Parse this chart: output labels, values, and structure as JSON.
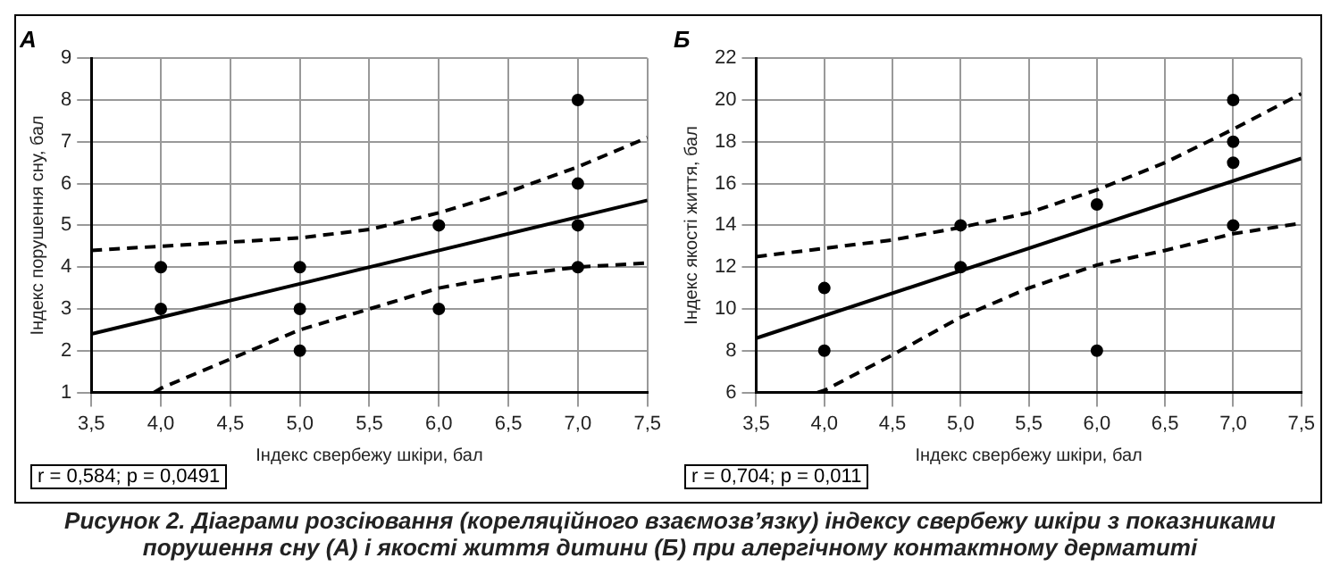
{
  "chart_data": [
    {
      "type": "scatter",
      "title": "А",
      "xlabel": "Індекс свербежу шкіри, бал",
      "ylabel": "Індекс порушення сну, бал",
      "annotations": [
        "r = 0,584; p = 0,0491",
        "Рисунок 2. Діаграми розсіювання (кореляційного взаємозв’язку) індексу свербежу шкіри з показниками порушення сну (А) і якості життя дитини (Б) при алергічному контактному дерматиті"
      ],
      "xlim": [
        3.5,
        7.5
      ],
      "xticks": [
        {
          "value": 3.5,
          "label": "3,5"
        },
        {
          "value": 4,
          "label": "4,0"
        },
        {
          "value": 4.5,
          "label": "4,5"
        },
        {
          "value": 5,
          "label": "5,0"
        },
        {
          "value": 5.5,
          "label": "5,5"
        },
        {
          "value": 6,
          "label": "6,0"
        },
        {
          "value": 6.5,
          "label": "6,5"
        },
        {
          "value": 7,
          "label": "7,0"
        },
        {
          "value": 7.5,
          "label": "7,5"
        }
      ],
      "ylim": [
        1,
        9
      ],
      "yticks": [
        1,
        2,
        3,
        4,
        5,
        6,
        7,
        8,
        9
      ],
      "grid": true,
      "marker": "circle",
      "series": [
        {
          "type": "scatter",
          "color": "#000000",
          "x": [
            4,
            4,
            5,
            5,
            5,
            6,
            6,
            7,
            7,
            7,
            7
          ],
          "values": [
            3,
            4,
            2,
            3,
            4,
            3,
            5,
            4,
            5,
            6,
            8
          ]
        },
        {
          "type": "line",
          "color": "#000000",
          "line_style": "solid",
          "marker": "none",
          "x": [
            3.5,
            7.5
          ],
          "values": [
            2.4,
            5.6
          ]
        },
        {
          "type": "line",
          "color": "#000000",
          "line_style": "dashed",
          "marker": "none",
          "x": [
            3.5,
            4,
            4.5,
            5,
            5.5,
            6,
            6.5,
            7,
            7.5
          ],
          "values": [
            4.4,
            4.5,
            4.6,
            4.7,
            4.9,
            5.3,
            5.8,
            6.4,
            7.1
          ]
        },
        {
          "type": "line",
          "color": "#000000",
          "line_style": "dashed",
          "marker": "none",
          "x": [
            3.95,
            4,
            4.5,
            5,
            5.5,
            6,
            6.5,
            7,
            7.5
          ],
          "values": [
            1,
            1.1,
            1.8,
            2.5,
            3,
            3.5,
            3.8,
            4,
            4.1
          ]
        }
      ]
    },
    {
      "type": "scatter",
      "title": "Б",
      "xlabel": "Індекс свербежу шкіри, бал",
      "ylabel": "Індекс якості життя, бал",
      "annotations": [
        "r = 0,704; p = 0,011"
      ],
      "xlim": [
        3.5,
        7.5
      ],
      "xticks": [
        {
          "value": 3.5,
          "label": "3,5"
        },
        {
          "value": 4,
          "label": "4,0"
        },
        {
          "value": 4.5,
          "label": "4,5"
        },
        {
          "value": 5,
          "label": "5,0"
        },
        {
          "value": 5.5,
          "label": "5,5"
        },
        {
          "value": 6,
          "label": "6,0"
        },
        {
          "value": 6.5,
          "label": "6,5"
        },
        {
          "value": 7,
          "label": "7,0"
        },
        {
          "value": 7.5,
          "label": "7,5"
        }
      ],
      "ylim": [
        6,
        22
      ],
      "yticks": [
        6,
        8,
        10,
        12,
        14,
        16,
        18,
        20,
        22
      ],
      "grid": true,
      "marker": "circle",
      "series": [
        {
          "type": "scatter",
          "color": "#000000",
          "x": [
            4,
            4,
            5,
            5,
            6,
            6,
            7,
            7,
            7,
            7
          ],
          "values": [
            8,
            11,
            12,
            14,
            8,
            15,
            14,
            17,
            18,
            20
          ]
        },
        {
          "type": "line",
          "color": "#000000",
          "line_style": "solid",
          "marker": "none",
          "x": [
            3.5,
            7.5
          ],
          "values": [
            8.6,
            17.2
          ]
        },
        {
          "type": "line",
          "color": "#000000",
          "line_style": "dashed",
          "marker": "none",
          "x": [
            3.5,
            4,
            4.5,
            5,
            5.5,
            6,
            6.5,
            7,
            7.5
          ],
          "values": [
            12.5,
            12.9,
            13.3,
            13.9,
            14.6,
            15.7,
            17,
            18.6,
            20.3
          ]
        },
        {
          "type": "line",
          "color": "#000000",
          "line_style": "dashed",
          "marker": "none",
          "x": [
            3.95,
            4,
            4.5,
            5,
            5.5,
            6,
            6.5,
            7,
            7.5
          ],
          "values": [
            6,
            6.1,
            7.8,
            9.6,
            11,
            12.1,
            12.8,
            13.6,
            14.1
          ]
        }
      ]
    }
  ]
}
